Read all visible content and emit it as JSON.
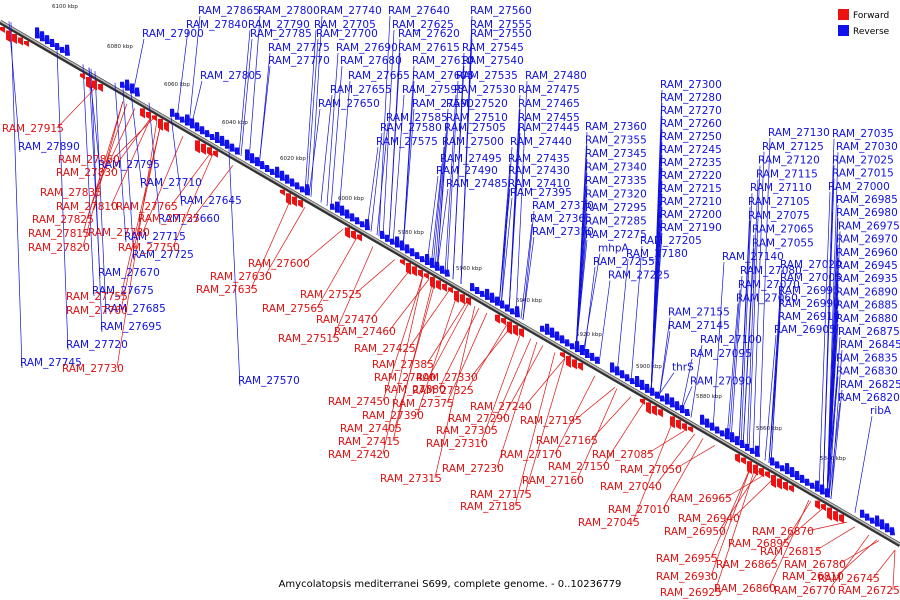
{
  "caption": "Amycolatopsis mediterranei S699, complete genome. - 0..10236779",
  "legend": [
    {
      "label": "Forward",
      "color": "#ee1111"
    },
    {
      "label": "Reverse",
      "color": "#1111ee"
    }
  ],
  "ticks": [
    "6100 kbp",
    "6080 kbp",
    "6060 kbp",
    "6040 kbp",
    "6020 kbp",
    "6000 kbp",
    "5980 kbp",
    "5960 kbp",
    "5940 kbp",
    "5920 kbp",
    "5900 kbp",
    "5880 kbp",
    "5860 kbp",
    "5840 kbp"
  ],
  "reverse_labels": [
    "RAM_27865",
    "RAM_27800",
    "RAM_27740",
    "RAM_27640",
    "RAM_27560",
    "RAM_27840",
    "RAM_27790",
    "RAM_27705",
    "RAM_27625",
    "RAM_27555",
    "RAM_27900",
    "RAM_27785",
    "RAM_27700",
    "RAM_27620",
    "RAM_27550",
    "RAM_27775",
    "RAM_27690",
    "RAM_27615",
    "RAM_27545",
    "RAM_27770",
    "RAM_27680",
    "RAM_27610",
    "RAM_27540",
    "RAM_27805",
    "RAM_27665",
    "RAM_27605",
    "RAM_27535",
    "RAM_27480",
    "RAM_27655",
    "RAM_27595",
    "RAM_27530",
    "RAM_27475",
    "RAM_27650",
    "RAM_27590",
    "RAM_27520",
    "RAM_27465",
    "RAM_27585",
    "RAM_27510",
    "RAM_27455",
    "RAM_27580",
    "RAM_27505",
    "RAM_27445",
    "RAM_27575",
    "RAM_27500",
    "RAM_27440",
    "RAM_27495",
    "RAM_27435",
    "RAM_27490",
    "RAM_27430",
    "RAM_27485",
    "RAM_27410",
    "RAM_27395",
    "RAM_27370",
    "RAM_27365",
    "RAM_27350",
    "RAM_27300",
    "RAM_27280",
    "RAM_27270",
    "RAM_27260",
    "RAM_27250",
    "RAM_27245",
    "RAM_27235",
    "RAM_27220",
    "RAM_27215",
    "RAM_27210",
    "RAM_27200",
    "RAM_27190",
    "RAM_27205",
    "RAM_27180",
    "RAM_27360",
    "RAM_27355",
    "RAM_27345",
    "RAM_27340",
    "RAM_27335",
    "RAM_27320",
    "RAM_27295",
    "RAM_27285",
    "RAM_27275",
    "mhpA",
    "RAM_27255",
    "RAM_27225",
    "RAM_27130",
    "RAM_27125",
    "RAM_27120",
    "RAM_27115",
    "RAM_27110",
    "RAM_27105",
    "RAM_27075",
    "RAM_27065",
    "RAM_27055",
    "RAM_27140",
    "RAM_27080",
    "RAM_27070",
    "RAM_27060",
    "RAM_27155",
    "RAM_27145",
    "RAM_27100",
    "RAM_27095",
    "thrS",
    "RAM_27090",
    "RAM_27035",
    "RAM_27030",
    "RAM_27025",
    "RAM_27015",
    "RAM_27000",
    "RAM_26985",
    "RAM_26980",
    "RAM_26975",
    "RAM_26970",
    "RAM_26960",
    "RAM_26945",
    "RAM_26935",
    "RAM_26890",
    "RAM_26885",
    "RAM_26880",
    "RAM_26875",
    "RAM_26845",
    "RAM_26835",
    "RAM_26830",
    "RAM_26825",
    "RAM_26820",
    "ribA",
    "RAM_27020",
    "RAM_27005",
    "RAM_26995",
    "RAM_26990",
    "RAM_26910",
    "RAM_26905",
    "RAM_27890",
    "RAM_27795",
    "RAM_27710",
    "RAM_27645",
    "RAM_27660",
    "RAM_27715",
    "RAM_27725",
    "RAM_27670",
    "RAM_27675",
    "RAM_27685",
    "RAM_27695",
    "RAM_27720",
    "RAM_27745",
    "RAM_27570"
  ],
  "forward_labels": [
    "RAM_27915",
    "RAM_27860",
    "RAM_27830",
    "RAM_27835",
    "RAM_27810",
    "RAM_27825",
    "RAM_27815",
    "RAM_27820",
    "RAM_27765",
    "RAM_27735",
    "RAM_27780",
    "RAM_27750",
    "RAM_27630",
    "RAM_27635",
    "RAM_27600",
    "RAM_27755",
    "RAM_27760",
    "RAM_27730",
    "RAM_27525",
    "RAM_27565",
    "RAM_27470",
    "RAM_27460",
    "RAM_27515",
    "RAM_27425",
    "RAM_27385",
    "RAM_27400",
    "RAM_27380",
    "RAM_27330",
    "RAM_27325",
    "RAM_27450",
    "RAM_27375",
    "RAM_27390",
    "RAM_27405",
    "RAM_27415",
    "RAM_27420",
    "RAM_27290",
    "RAM_27305",
    "RAM_27310",
    "RAM_27240",
    "RAM_27195",
    "RAM_27165",
    "RAM_27170",
    "RAM_27150",
    "RAM_27085",
    "RAM_27230",
    "RAM_27315",
    "RAM_27160",
    "RAM_27175",
    "RAM_27185",
    "RAM_27050",
    "RAM_27040",
    "RAM_27010",
    "RAM_27045",
    "RAM_26965",
    "RAM_26940",
    "RAM_26950",
    "RAM_26870",
    "RAM_26895",
    "RAM_26955",
    "RAM_26865",
    "RAM_26815",
    "RAM_26930",
    "RAM_26810",
    "RAM_26780",
    "RAM_26925",
    "RAM_26860",
    "RAM_26770",
    "RAM_26745",
    "RAM_26725"
  ]
}
